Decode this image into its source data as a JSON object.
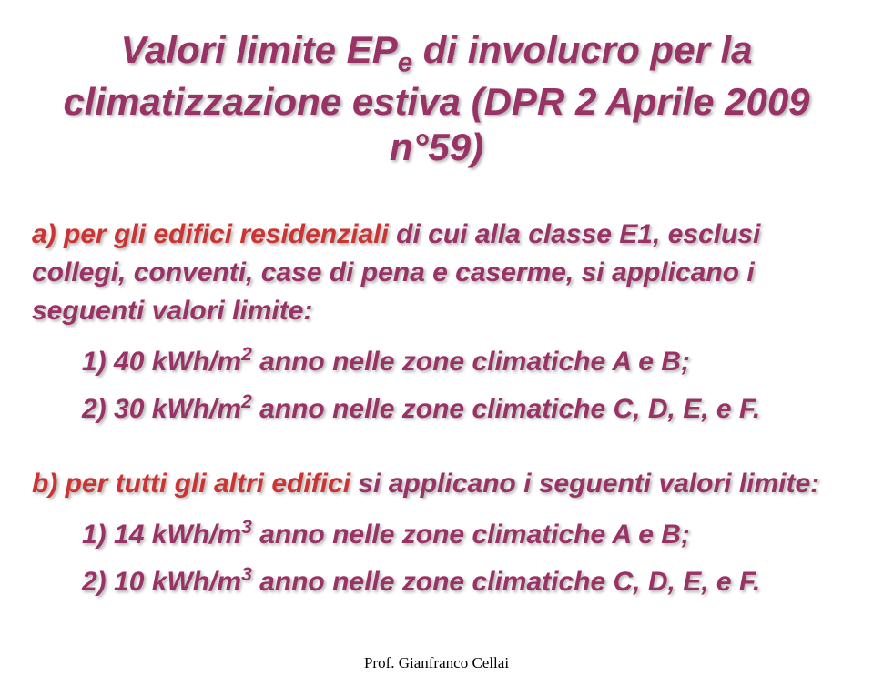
{
  "title": {
    "line1_pre": "Valori limite EP",
    "subscript": "e",
    "line1_post": " di involucro per la",
    "line2": "climatizzazione estiva (DPR 2 Aprile 2009 n°59)"
  },
  "sectionA": {
    "intro_red_a": "a)",
    "intro_red_text": " per gli edifici residenziali",
    "intro_rest": " di cui alla classe E1, esclusi collegi, conventi, case di pena e caserme, si applicano i seguenti valori limite:",
    "item1_num": "1) 40 kWh/m",
    "item1_sup": "2",
    "item1_rest": " anno nelle zone climatiche A e B;",
    "item2_num": "2) 30 kWh/m",
    "item2_sup": "2",
    "item2_rest": " anno nelle zone climatiche C, D, E, e F."
  },
  "sectionB": {
    "intro_red_b": "b)",
    "intro_red_text": " per tutti gli altri edifici",
    "intro_rest": " si applicano i seguenti valori limite:",
    "item1_num": "1) 14 kWh/m",
    "item1_sup": "3",
    "item1_rest": " anno nelle zone climatiche A e B;",
    "item2_num": "2) 10 kWh/m",
    "item2_sup": "3",
    "item2_rest": " anno nelle zone climatiche C, D, E, e F."
  },
  "footer": "Prof. Gianfranco Cellai",
  "colors": {
    "primary": "#993366",
    "accent": "#cc3333",
    "background": "#ffffff",
    "footer_text": "#000000"
  },
  "typography": {
    "title_fontsize": 42,
    "content_fontsize": 30,
    "footer_fontsize": 17,
    "font_weight": "bold",
    "font_style": "italic"
  }
}
